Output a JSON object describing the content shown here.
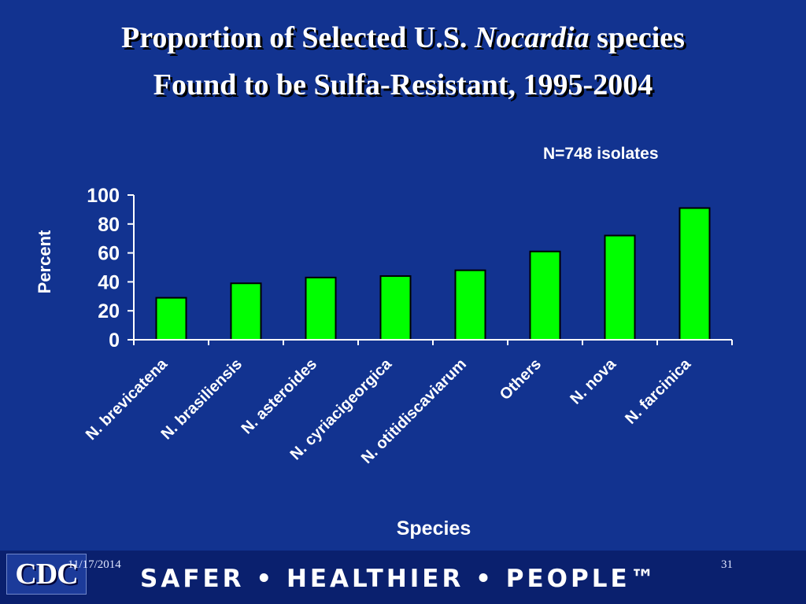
{
  "title": {
    "line1_pre": "Proportion of Selected U.S. ",
    "line1_italic": "Nocardia",
    "line1_post": " species",
    "line2": "Found to be Sulfa-Resistant, 1995-2004"
  },
  "note": "N=748 isolates",
  "footer": {
    "logo_text": "CDC",
    "date": "11/17/2014",
    "page_number": "31",
    "tagline": "SAFER • HEALTHIER • PEOPLE™"
  },
  "colors": {
    "background": "#123390",
    "bar": "#00ff00",
    "axis": "#ffffff"
  },
  "chart_data": {
    "type": "bar",
    "title": "",
    "xlabel": "Species",
    "ylabel": "Percent",
    "ylim": [
      0,
      100
    ],
    "yticks": [
      0,
      20,
      40,
      60,
      80,
      100
    ],
    "categories": [
      "N. brevicatena",
      "N. brasiliensis",
      "N. asteroides",
      "N. cyriacigeorgica",
      "N. otitidiscaviarum",
      "Others",
      "N. nova",
      "N. farcinica"
    ],
    "values": [
      29,
      39,
      43,
      44,
      48,
      61,
      72,
      91
    ],
    "grid": false,
    "legend": "none"
  }
}
